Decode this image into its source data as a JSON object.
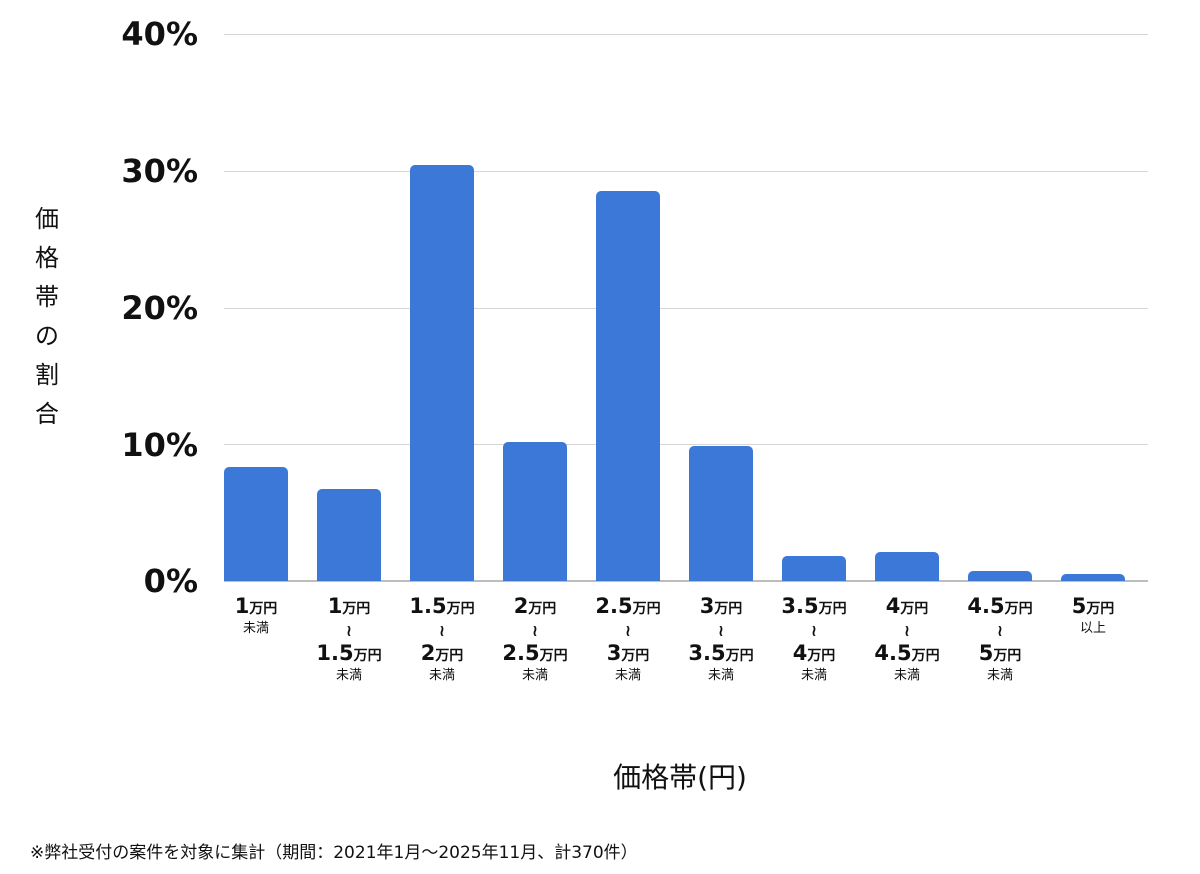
{
  "chart_data": {
    "type": "bar",
    "title": "",
    "xlabel": "価格帯(円)",
    "ylabel": "価格帯の割合",
    "ylim": [
      0,
      40
    ],
    "yticks": [
      "0%",
      "10%",
      "20%",
      "30%",
      "40%"
    ],
    "grid": true,
    "legend": null,
    "categories": [
      "1万円未満",
      "1万円〜1.5万円未満",
      "1.5万円〜2万円未満",
      "2万円〜2.5万円未満",
      "2.5万円〜3万円未満",
      "3万円〜3.5万円未満",
      "3.5万円〜4万円未満",
      "4万円〜4.5万円未満",
      "4.5万円〜5万円未満",
      "5万円以上"
    ],
    "values": [
      8.3,
      6.7,
      30.4,
      10.2,
      28.5,
      9.9,
      1.8,
      2.1,
      0.7,
      0.5
    ],
    "bar_color": "#3c78d8",
    "note": "※弊社受付の案件を対象に集計（期間：2021年1月〜2025年11月、計370件）"
  },
  "axis": {
    "yticks": [
      "40%",
      "30%",
      "20%",
      "10%",
      "0%"
    ],
    "ylabel_chars": [
      "価",
      "格",
      "帯",
      "の",
      "割",
      "合"
    ],
    "xlabel": "価格帯(円)"
  },
  "xcats": [
    {
      "from_num": "1",
      "from_unit": "万円",
      "sub": "未満"
    },
    {
      "from_num": "1",
      "from_unit": "万円",
      "tilde": "〜",
      "to_num": "1.5",
      "to_unit": "万円",
      "sub": "未満"
    },
    {
      "from_num": "1.5",
      "from_unit": "万円",
      "tilde": "〜",
      "to_num": "2",
      "to_unit": "万円",
      "sub": "未満"
    },
    {
      "from_num": "2",
      "from_unit": "万円",
      "tilde": "〜",
      "to_num": "2.5",
      "to_unit": "万円",
      "sub": "未満"
    },
    {
      "from_num": "2.5",
      "from_unit": "万円",
      "tilde": "〜",
      "to_num": "3",
      "to_unit": "万円",
      "sub": "未満"
    },
    {
      "from_num": "3",
      "from_unit": "万円",
      "tilde": "〜",
      "to_num": "3.5",
      "to_unit": "万円",
      "sub": "未満"
    },
    {
      "from_num": "3.5",
      "from_unit": "万円",
      "tilde": "〜",
      "to_num": "4",
      "to_unit": "万円",
      "sub": "未満"
    },
    {
      "from_num": "4",
      "from_unit": "万円",
      "tilde": "〜",
      "to_num": "4.5",
      "to_unit": "万円",
      "sub": "未満"
    },
    {
      "from_num": "4.5",
      "from_unit": "万円",
      "tilde": "〜",
      "to_num": "5",
      "to_unit": "万円",
      "sub": "未満"
    },
    {
      "from_num": "5",
      "from_unit": "万円",
      "sub": "以上"
    }
  ],
  "note": "※弊社受付の案件を対象に集計（期間：2021年1月〜2025年11月、計370件）"
}
